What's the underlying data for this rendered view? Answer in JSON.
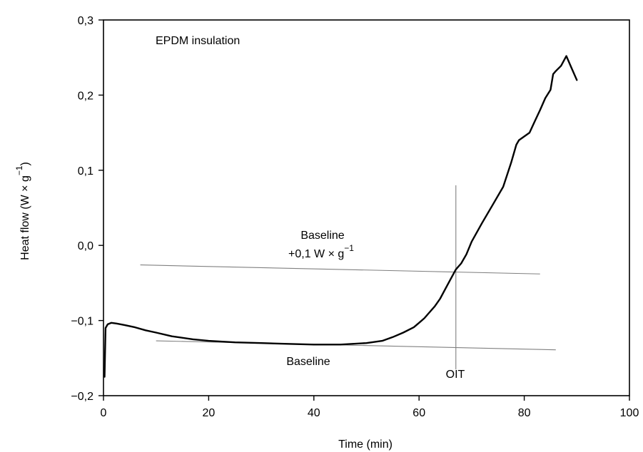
{
  "chart_data": {
    "type": "line",
    "title": "",
    "annotation_title": "EPDM insulation",
    "xlabel": "Time   (min)",
    "ylabel": "Heat flow   (W × g",
    "ylabel_sup": "−1",
    "ylabel_close": ")",
    "xlim": [
      0,
      100
    ],
    "ylim": [
      -0.2,
      0.3
    ],
    "x_ticks": [
      0,
      20,
      40,
      60,
      80,
      100
    ],
    "x_tick_labels": [
      "0",
      "20",
      "40",
      "60",
      "80",
      "100"
    ],
    "y_ticks": [
      -0.2,
      -0.1,
      0.0,
      0.1,
      0.2,
      0.3
    ],
    "y_tick_labels": [
      "−0,2",
      "−0,1",
      "0,0",
      "0,1",
      "0,2",
      "0,3"
    ],
    "grid": false,
    "series": [
      {
        "x": [
          0.2,
          0.4,
          0.8,
          1.5,
          2.5,
          4,
          6,
          8,
          10,
          13,
          17,
          20,
          25,
          30,
          35,
          40,
          45,
          50,
          53,
          55,
          57,
          59,
          60,
          61,
          62,
          63,
          64,
          65,
          66,
          67,
          68,
          69,
          70,
          72,
          74,
          76,
          77.5,
          78.5,
          79,
          80,
          81,
          82,
          83,
          84,
          85,
          85.5,
          86,
          87,
          88,
          89,
          90
        ],
        "y": [
          -0.175,
          -0.11,
          -0.105,
          -0.103,
          -0.104,
          -0.106,
          -0.109,
          -0.113,
          -0.116,
          -0.121,
          -0.125,
          -0.127,
          -0.129,
          -0.13,
          -0.131,
          -0.132,
          -0.132,
          -0.13,
          -0.127,
          -0.122,
          -0.116,
          -0.109,
          -0.103,
          -0.097,
          -0.089,
          -0.081,
          -0.071,
          -0.058,
          -0.045,
          -0.032,
          -0.024,
          -0.012,
          0.005,
          0.03,
          0.054,
          0.078,
          0.11,
          0.134,
          0.14,
          0.145,
          0.15,
          0.165,
          0.18,
          0.196,
          0.207,
          0.228,
          0.232,
          0.239,
          0.252,
          0.236,
          0.22
        ]
      }
    ],
    "annotations": {
      "baseline_label": "Baseline",
      "upper_label_line1": "Baseline",
      "upper_label_line2": "+0,1 W × g",
      "upper_label_sup": "−1",
      "oit_label": "OIT"
    },
    "reference_lines": {
      "baseline": {
        "x": [
          10,
          86
        ],
        "y": [
          -0.127,
          -0.139
        ]
      },
      "upper_baseline": {
        "x": [
          7,
          83
        ],
        "y": [
          -0.026,
          -0.038
        ]
      },
      "oit_vertical": {
        "x": 67,
        "y": [
          -0.165,
          0.08
        ]
      }
    }
  }
}
